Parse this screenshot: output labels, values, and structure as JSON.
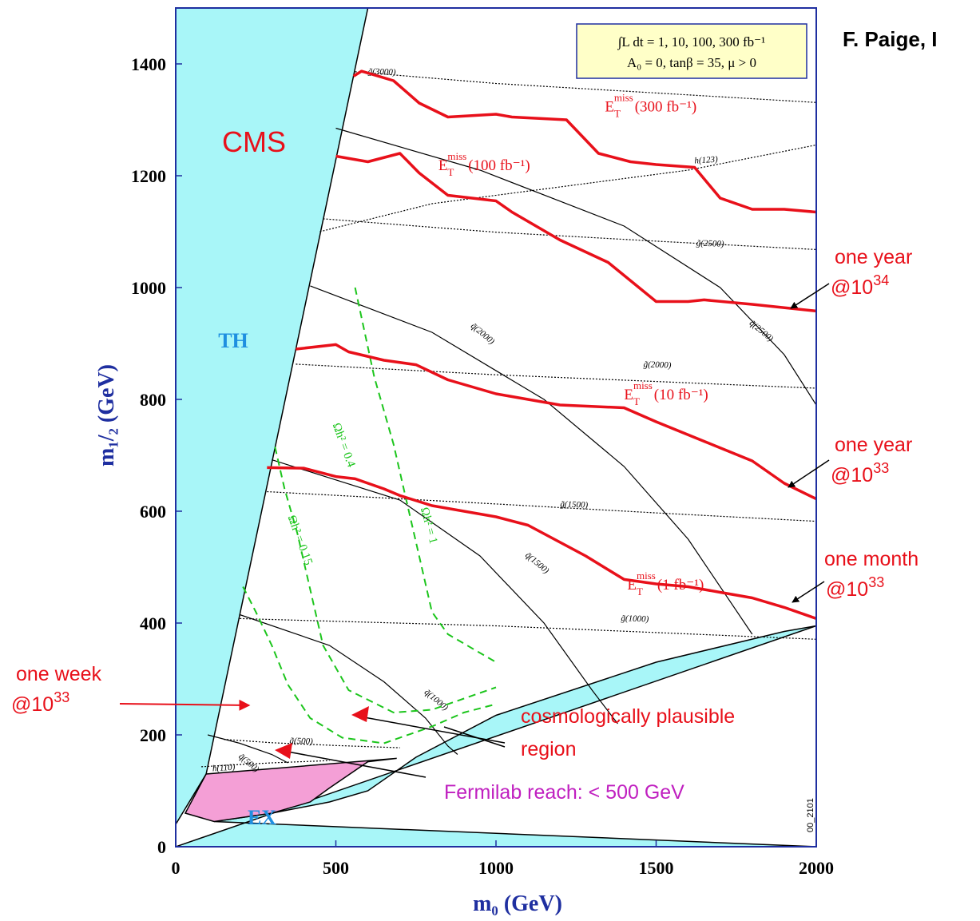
{
  "author": "F. Paige, I",
  "legend_box": {
    "line1": "∫L dt = 1, 10, 100, 300 fb⁻¹",
    "line2": "A₀ = 0, tanβ = 35, μ > 0"
  },
  "colors": {
    "excluded_th": "#a8f6f8",
    "excluded_ex": "#f49fd6",
    "reach": "#e8101a",
    "relic": "#1cc51c",
    "frame": "#1f2fa0",
    "annotation": "#c020c0"
  },
  "regions": {
    "cms": "CMS",
    "th": "TH",
    "ex": "EX"
  },
  "chart_data": {
    "type": "line",
    "xlabel": "m₀ (GeV)",
    "ylabel": "m₁/₂ (GeV)",
    "xlim": [
      0,
      2000
    ],
    "ylim": [
      0,
      1500
    ],
    "xticks": [
      "0",
      "500",
      "1000",
      "1500",
      "2000"
    ],
    "yticks": [
      "0",
      "200",
      "400",
      "600",
      "800",
      "1000",
      "1200",
      "1400"
    ],
    "grid": false,
    "series": [
      {
        "name": "E_T^miss (300 fb⁻¹)",
        "label_main": "E",
        "label_sub": "T",
        "label_sup": "miss",
        "label_tail": "(300 fb⁻¹)",
        "label_at": [
          1340,
          1315
        ],
        "x": [
          555,
          580,
          680,
          760,
          850,
          1000,
          1050,
          1220,
          1320,
          1420,
          1500,
          1620,
          1700,
          1800,
          1900,
          2000
        ],
        "y": [
          1378,
          1387,
          1370,
          1330,
          1305,
          1310,
          1305,
          1300,
          1240,
          1225,
          1220,
          1215,
          1160,
          1140,
          1140,
          1135
        ]
      },
      {
        "name": "E_T^miss (100 fb⁻¹)",
        "label_main": "E",
        "label_sub": "T",
        "label_sup": "miss",
        "label_tail": "(100 fb⁻¹)",
        "label_at": [
          820,
          1210
        ],
        "x": [
          500,
          600,
          700,
          760,
          850,
          1000,
          1050,
          1200,
          1350,
          1500,
          1600,
          1650,
          1800,
          2000
        ],
        "y": [
          1235,
          1225,
          1240,
          1205,
          1165,
          1155,
          1135,
          1085,
          1045,
          975,
          975,
          978,
          970,
          958
        ]
      },
      {
        "name": "E_T^miss (10 fb⁻¹)",
        "label_main": "E",
        "label_sub": "T",
        "label_sup": "miss",
        "label_tail": "(10 fb⁻¹)",
        "label_at": [
          1400,
          800
        ],
        "x": [
          375,
          500,
          540,
          650,
          750,
          850,
          1000,
          1100,
          1200,
          1400,
          1500,
          1650,
          1800,
          1900,
          2000
        ],
        "y": [
          890,
          898,
          885,
          870,
          862,
          835,
          810,
          800,
          790,
          785,
          760,
          725,
          690,
          650,
          622
        ]
      },
      {
        "name": "E_T^miss (1 fb⁻¹)",
        "label_main": "E",
        "label_sub": "T",
        "label_sup": "miss",
        "label_tail": "(1 fb⁻¹)",
        "label_at": [
          1410,
          460
        ],
        "x": [
          285,
          400,
          500,
          560,
          650,
          700,
          800,
          1000,
          1100,
          1280,
          1400,
          1500,
          1600,
          1700,
          1800,
          1900,
          2000
        ],
        "y": [
          678,
          677,
          662,
          658,
          640,
          628,
          610,
          590,
          575,
          520,
          478,
          470,
          465,
          455,
          445,
          428,
          408
        ]
      }
    ],
    "gluino_contours": [
      {
        "label": "g̃(3000)",
        "label_at": [
          600,
          1382
        ],
        "x": [
          560,
          1000,
          1500,
          2000
        ],
        "y": [
          1386,
          1365,
          1348,
          1331
        ]
      },
      {
        "label": "g̃(2500)",
        "label_at": [
          1625,
          1075
        ],
        "x": [
          460,
          1000,
          1500,
          2000
        ],
        "y": [
          1123,
          1099,
          1083,
          1068
        ]
      },
      {
        "label": "g̃(2000)",
        "label_at": [
          1460,
          858
        ],
        "x": [
          375,
          1000,
          1500,
          2000
        ],
        "y": [
          863,
          844,
          832,
          820
        ]
      },
      {
        "label": "g̃(1500)",
        "label_at": [
          1200,
          608
        ],
        "x": [
          285,
          1000,
          1500,
          2000
        ],
        "y": [
          635,
          613,
          597,
          582
        ]
      },
      {
        "label": "g̃(1000)",
        "label_at": [
          1390,
          404
        ],
        "x": [
          200,
          1000,
          1500,
          2000
        ],
        "y": [
          408,
          395,
          383,
          371
        ]
      },
      {
        "label": "g̃(500)",
        "label_at": [
          355,
          185
        ],
        "x": [
          150,
          300,
          500,
          700
        ],
        "y": [
          192,
          186,
          181,
          177
        ]
      }
    ],
    "squark_contours": [
      {
        "label": "q̃(2500)",
        "label_at": [
          1790,
          935
        ],
        "x": [
          500,
          950,
          1400,
          1700,
          1900,
          2000
        ],
        "y": [
          1285,
          1210,
          1110,
          1000,
          880,
          790
        ]
      },
      {
        "label": "q̃(2000)",
        "label_at": [
          920,
          930
        ],
        "x": [
          420,
          800,
          1150,
          1400,
          1600,
          1800
        ],
        "y": [
          1003,
          920,
          800,
          680,
          550,
          380
        ]
      },
      {
        "label": "q̃(1500)",
        "label_at": [
          1090,
          520
        ],
        "x": [
          300,
          700,
          950,
          1150,
          1300,
          1380
        ],
        "y": [
          692,
          620,
          520,
          400,
          280,
          220
        ]
      },
      {
        "label": "q̃(1000)",
        "label_at": [
          775,
          275
        ],
        "x": [
          200,
          480,
          650,
          780,
          850,
          880
        ],
        "y": [
          415,
          360,
          295,
          230,
          180,
          165
        ]
      },
      {
        "label": "q̃(500)",
        "label_at": [
          195,
          160
        ],
        "x": [
          100,
          200,
          300,
          350
        ],
        "y": [
          200,
          185,
          165,
          150
        ]
      }
    ],
    "higgs_contours": [
      {
        "label": "h(123)",
        "label_at": [
          1620,
          1222
        ],
        "x": [
          450,
          800,
          1200,
          1600,
          2000
        ],
        "y": [
          1100,
          1150,
          1180,
          1210,
          1255
        ]
      },
      {
        "label": "h(110)",
        "label_at": [
          115,
          135
        ],
        "x": [
          80,
          200,
          300,
          480
        ],
        "y": [
          143,
          147,
          150,
          154
        ]
      }
    ],
    "relic_contours": [
      {
        "label": "Ωh² = 1",
        "label_at": [
          765,
          605
        ],
        "x": [
          560,
          620,
          680,
          720,
          760,
          800,
          850,
          940,
          1000
        ],
        "y": [
          1000,
          840,
          720,
          620,
          520,
          420,
          380,
          350,
          330
        ]
      },
      {
        "label": "Ωh² = 0.4",
        "label_at": [
          490,
          755
        ],
        "x": [
          310,
          340,
          380,
          420,
          460,
          540,
          680,
          800,
          900,
          1000
        ],
        "y": [
          715,
          640,
          560,
          460,
          360,
          280,
          240,
          245,
          265,
          285
        ]
      },
      {
        "label": "Ωh² = 0.15",
        "label_at": [
          350,
          590
        ],
        "x": [
          210,
          250,
          300,
          350,
          420,
          520,
          650,
          800,
          900,
          1000
        ],
        "y": [
          465,
          420,
          360,
          290,
          230,
          195,
          185,
          215,
          240,
          255
        ]
      }
    ],
    "th_boundary": {
      "x": [
        0,
        600,
        95,
        0
      ],
      "y": [
        1500,
        1500,
        130,
        40
      ]
    },
    "ex_boundary": {
      "x": [
        95,
        30,
        120,
        300,
        420,
        480,
        600,
        690
      ],
      "y": [
        130,
        60,
        45,
        60,
        80,
        105,
        152,
        158
      ]
    },
    "bottom_excluded_boundary": {
      "x": [
        2000,
        1900,
        1500,
        1000,
        750,
        600,
        480,
        300,
        120
      ],
      "y": [
        395,
        385,
        330,
        235,
        160,
        100,
        80,
        60,
        45
      ]
    }
  },
  "annotations": {
    "one_year_34": {
      "line1": "one year",
      "line2": "@10",
      "sup": "34"
    },
    "one_year_33": {
      "line1": "one year",
      "line2": "@10",
      "sup": "33"
    },
    "one_month_33": {
      "line1": "one month",
      "line2": "@10",
      "sup": "33"
    },
    "one_week_33": {
      "line1": "one week",
      "line2": "@10",
      "sup": "33"
    },
    "cosmo_line1": "cosmologically plausible",
    "cosmo_line2": "region",
    "fermilab": "Fermilab reach: < 500 GeV",
    "id_tag": "00_2101"
  }
}
